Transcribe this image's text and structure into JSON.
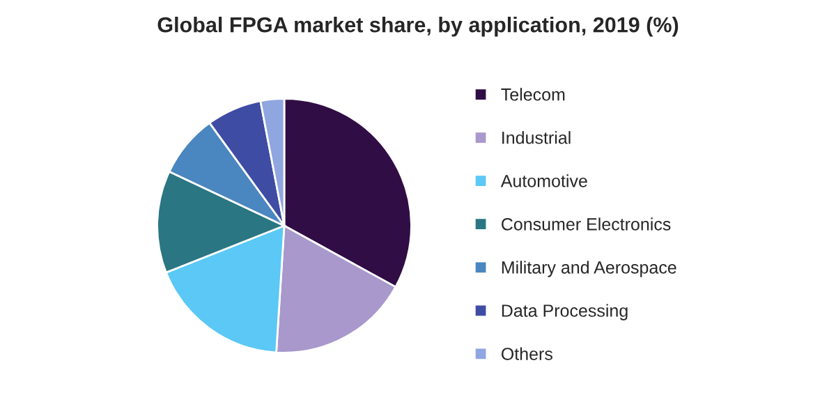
{
  "chart_data": {
    "type": "pie",
    "title": "Global FPGA market share, by application, 2019 (%)",
    "categories": [
      "Telecom",
      "Industrial",
      "Automotive",
      "Consumer Electronics",
      "Military and Aerospace",
      "Data Processing",
      "Others"
    ],
    "values": [
      33,
      18,
      18,
      13,
      8,
      7,
      3
    ],
    "colors": [
      "#300d45",
      "#a898cc",
      "#5bc8f5",
      "#2a7682",
      "#4a86bf",
      "#3f4ca3",
      "#8fa6e0"
    ],
    "legend": "right"
  }
}
